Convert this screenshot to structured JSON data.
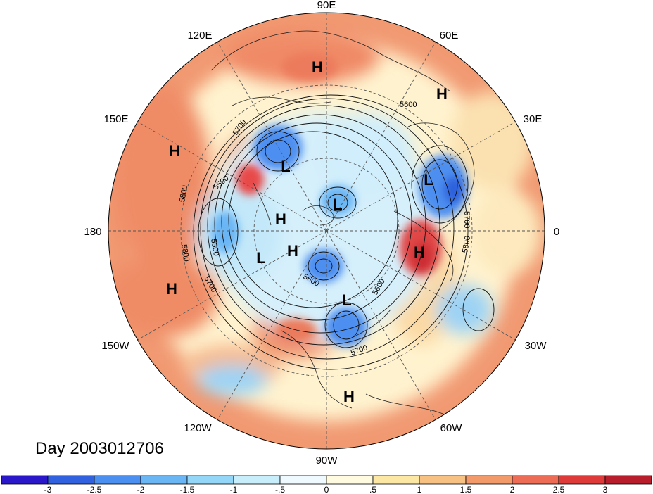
{
  "date_label": "Day 2003012706",
  "longitude_labels": [
    "90E",
    "60E",
    "30E",
    "0",
    "30W",
    "60W",
    "90W",
    "120W",
    "150W",
    "180",
    "150E",
    "120E"
  ],
  "highs_lows": [
    {
      "symbol": "H",
      "name": "high-central-asia"
    },
    {
      "symbol": "H",
      "name": "high-urals"
    },
    {
      "symbol": "H",
      "name": "high-west-pacific"
    },
    {
      "symbol": "L",
      "name": "low-kamchatka"
    },
    {
      "symbol": "L",
      "name": "low-europe"
    },
    {
      "symbol": "L",
      "name": "low-arctic"
    },
    {
      "symbol": "H",
      "name": "high-alaska"
    },
    {
      "symbol": "H",
      "name": "high-yukon"
    },
    {
      "symbol": "L",
      "name": "low-gulf-of-alaska"
    },
    {
      "symbol": "H",
      "name": "high-east-atlantic"
    },
    {
      "symbol": "H",
      "name": "high-subtropical-pacific"
    },
    {
      "symbol": "L",
      "name": "low-eastern-north-america"
    },
    {
      "symbol": "H",
      "name": "high-caribbean"
    }
  ],
  "contour_labels": [
    "5600",
    "5700",
    "5800",
    "5500",
    "5300",
    "5800",
    "5700",
    "5600",
    "5700",
    "5800",
    "5700",
    "5600"
  ],
  "colorbar": {
    "ticks": [
      "-3",
      "-2.5",
      "-2",
      "-1.5",
      "-1",
      "-.5",
      "0",
      ".5",
      "1",
      "1.5",
      "2",
      "2.5",
      "3"
    ],
    "colors": [
      "#2a17c9",
      "#3261e0",
      "#4b8ff0",
      "#6ab6f5",
      "#93d6f8",
      "#c8eefb",
      "#eefaff",
      "#fffbe0",
      "#fde7a5",
      "#f8c184",
      "#f39a6a",
      "#ec6c55",
      "#de3a3a",
      "#b81d2c"
    ]
  },
  "colors": {
    "warm": "#f4a478",
    "warm_strong": "#ec6c55",
    "cool": "#93d6f8",
    "cool_strong": "#4b8ff0",
    "neutral": "#fff6d8"
  }
}
